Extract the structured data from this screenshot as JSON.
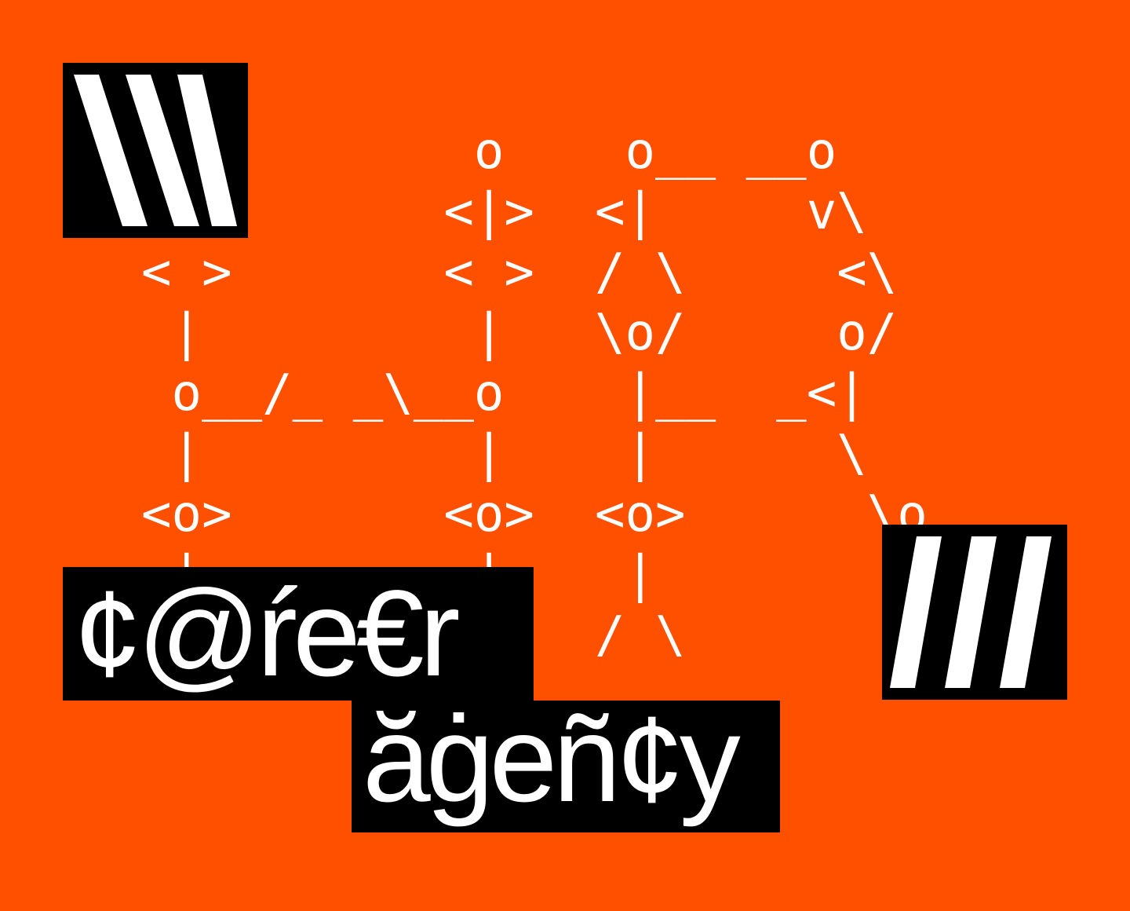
{
  "colors": {
    "background": "#FF5000",
    "block": "#000000",
    "ink": "#FFFFFF"
  },
  "ascii_art": [
    "           o    o__ __o",
    "          <|>  <|     v\\",
    "< >       < >  / \\     <\\",
    " |         |   \\o/     o/",
    " o__/_ _\\__o    |__  _<|",
    " |         |    |      \\",
    "<o>       <o>  <o>      \\o",
    " |         |    |",
    "/ \\       / \\  / \\"
  ],
  "logo": {
    "line1": "¢@ŕe€r",
    "line2": "ăġeñ¢y"
  },
  "decor": {
    "left_slashes": "backslash-stripes",
    "right_slashes": "slash-stripes"
  }
}
